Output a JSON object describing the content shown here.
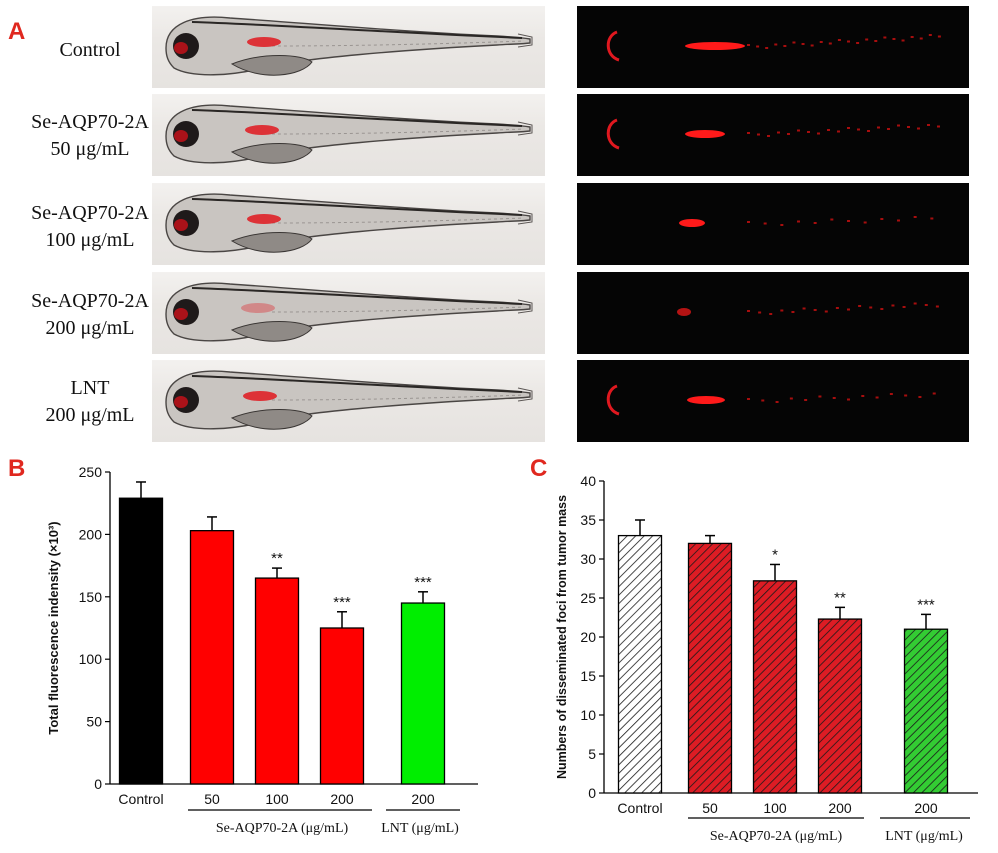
{
  "panels": {
    "a": "A",
    "b": "B",
    "c": "C"
  },
  "rows": [
    {
      "line1": "Control",
      "line2": ""
    },
    {
      "line1": "Se-AQP70-2A",
      "line2": "50 μg/mL"
    },
    {
      "line1": "Se-AQP70-2A",
      "line2": "100 μg/mL"
    },
    {
      "line1": "Se-AQP70-2A",
      "line2": "200 μg/mL"
    },
    {
      "line1": "LNT",
      "line2": "200 μg/mL"
    }
  ],
  "colors": {
    "red": "#ff0000",
    "green": "#00ee00",
    "black": "#000000",
    "hatch_red": "#dd1c24",
    "hatch_green": "#33cc33",
    "letter": "#e0281f"
  },
  "chart_data": [
    {
      "type": "bar",
      "panel": "B",
      "ylabel": "Total  fluorescence indensity (×10³)",
      "categories": [
        "Control",
        "50",
        "100",
        "200",
        "200"
      ],
      "values": [
        229,
        203,
        165,
        125,
        145
      ],
      "errors": [
        13,
        11,
        8,
        13,
        9
      ],
      "significance": [
        "",
        "",
        "**",
        "***",
        "***"
      ],
      "bar_colors": [
        "#000000",
        "#ff0000",
        "#ff0000",
        "#ff0000",
        "#00ee00"
      ],
      "group_labels": [
        "Se-AQP70-2A (μg/mL)",
        "LNT (μg/mL)"
      ],
      "ylim": [
        0,
        250
      ],
      "yticks": [
        0,
        50,
        100,
        150,
        200,
        250
      ]
    },
    {
      "type": "bar",
      "panel": "C",
      "ylabel": "Numbers of disseminated foci from tumor mass",
      "categories": [
        "Control",
        "50",
        "100",
        "200",
        "200"
      ],
      "values": [
        33,
        32,
        27.2,
        22.3,
        21
      ],
      "errors": [
        2,
        1,
        2.1,
        1.5,
        1.9
      ],
      "significance": [
        "",
        "",
        "*",
        "**",
        "***"
      ],
      "fill_pattern": [
        "hatch-white",
        "hatch-red",
        "hatch-red",
        "hatch-red",
        "hatch-green"
      ],
      "group_labels": [
        "Se-AQP70-2A (μg/mL)",
        "LNT (μg/mL)"
      ],
      "ylim": [
        0,
        40
      ],
      "yticks": [
        0,
        5,
        10,
        15,
        20,
        25,
        30,
        35,
        40
      ]
    }
  ]
}
